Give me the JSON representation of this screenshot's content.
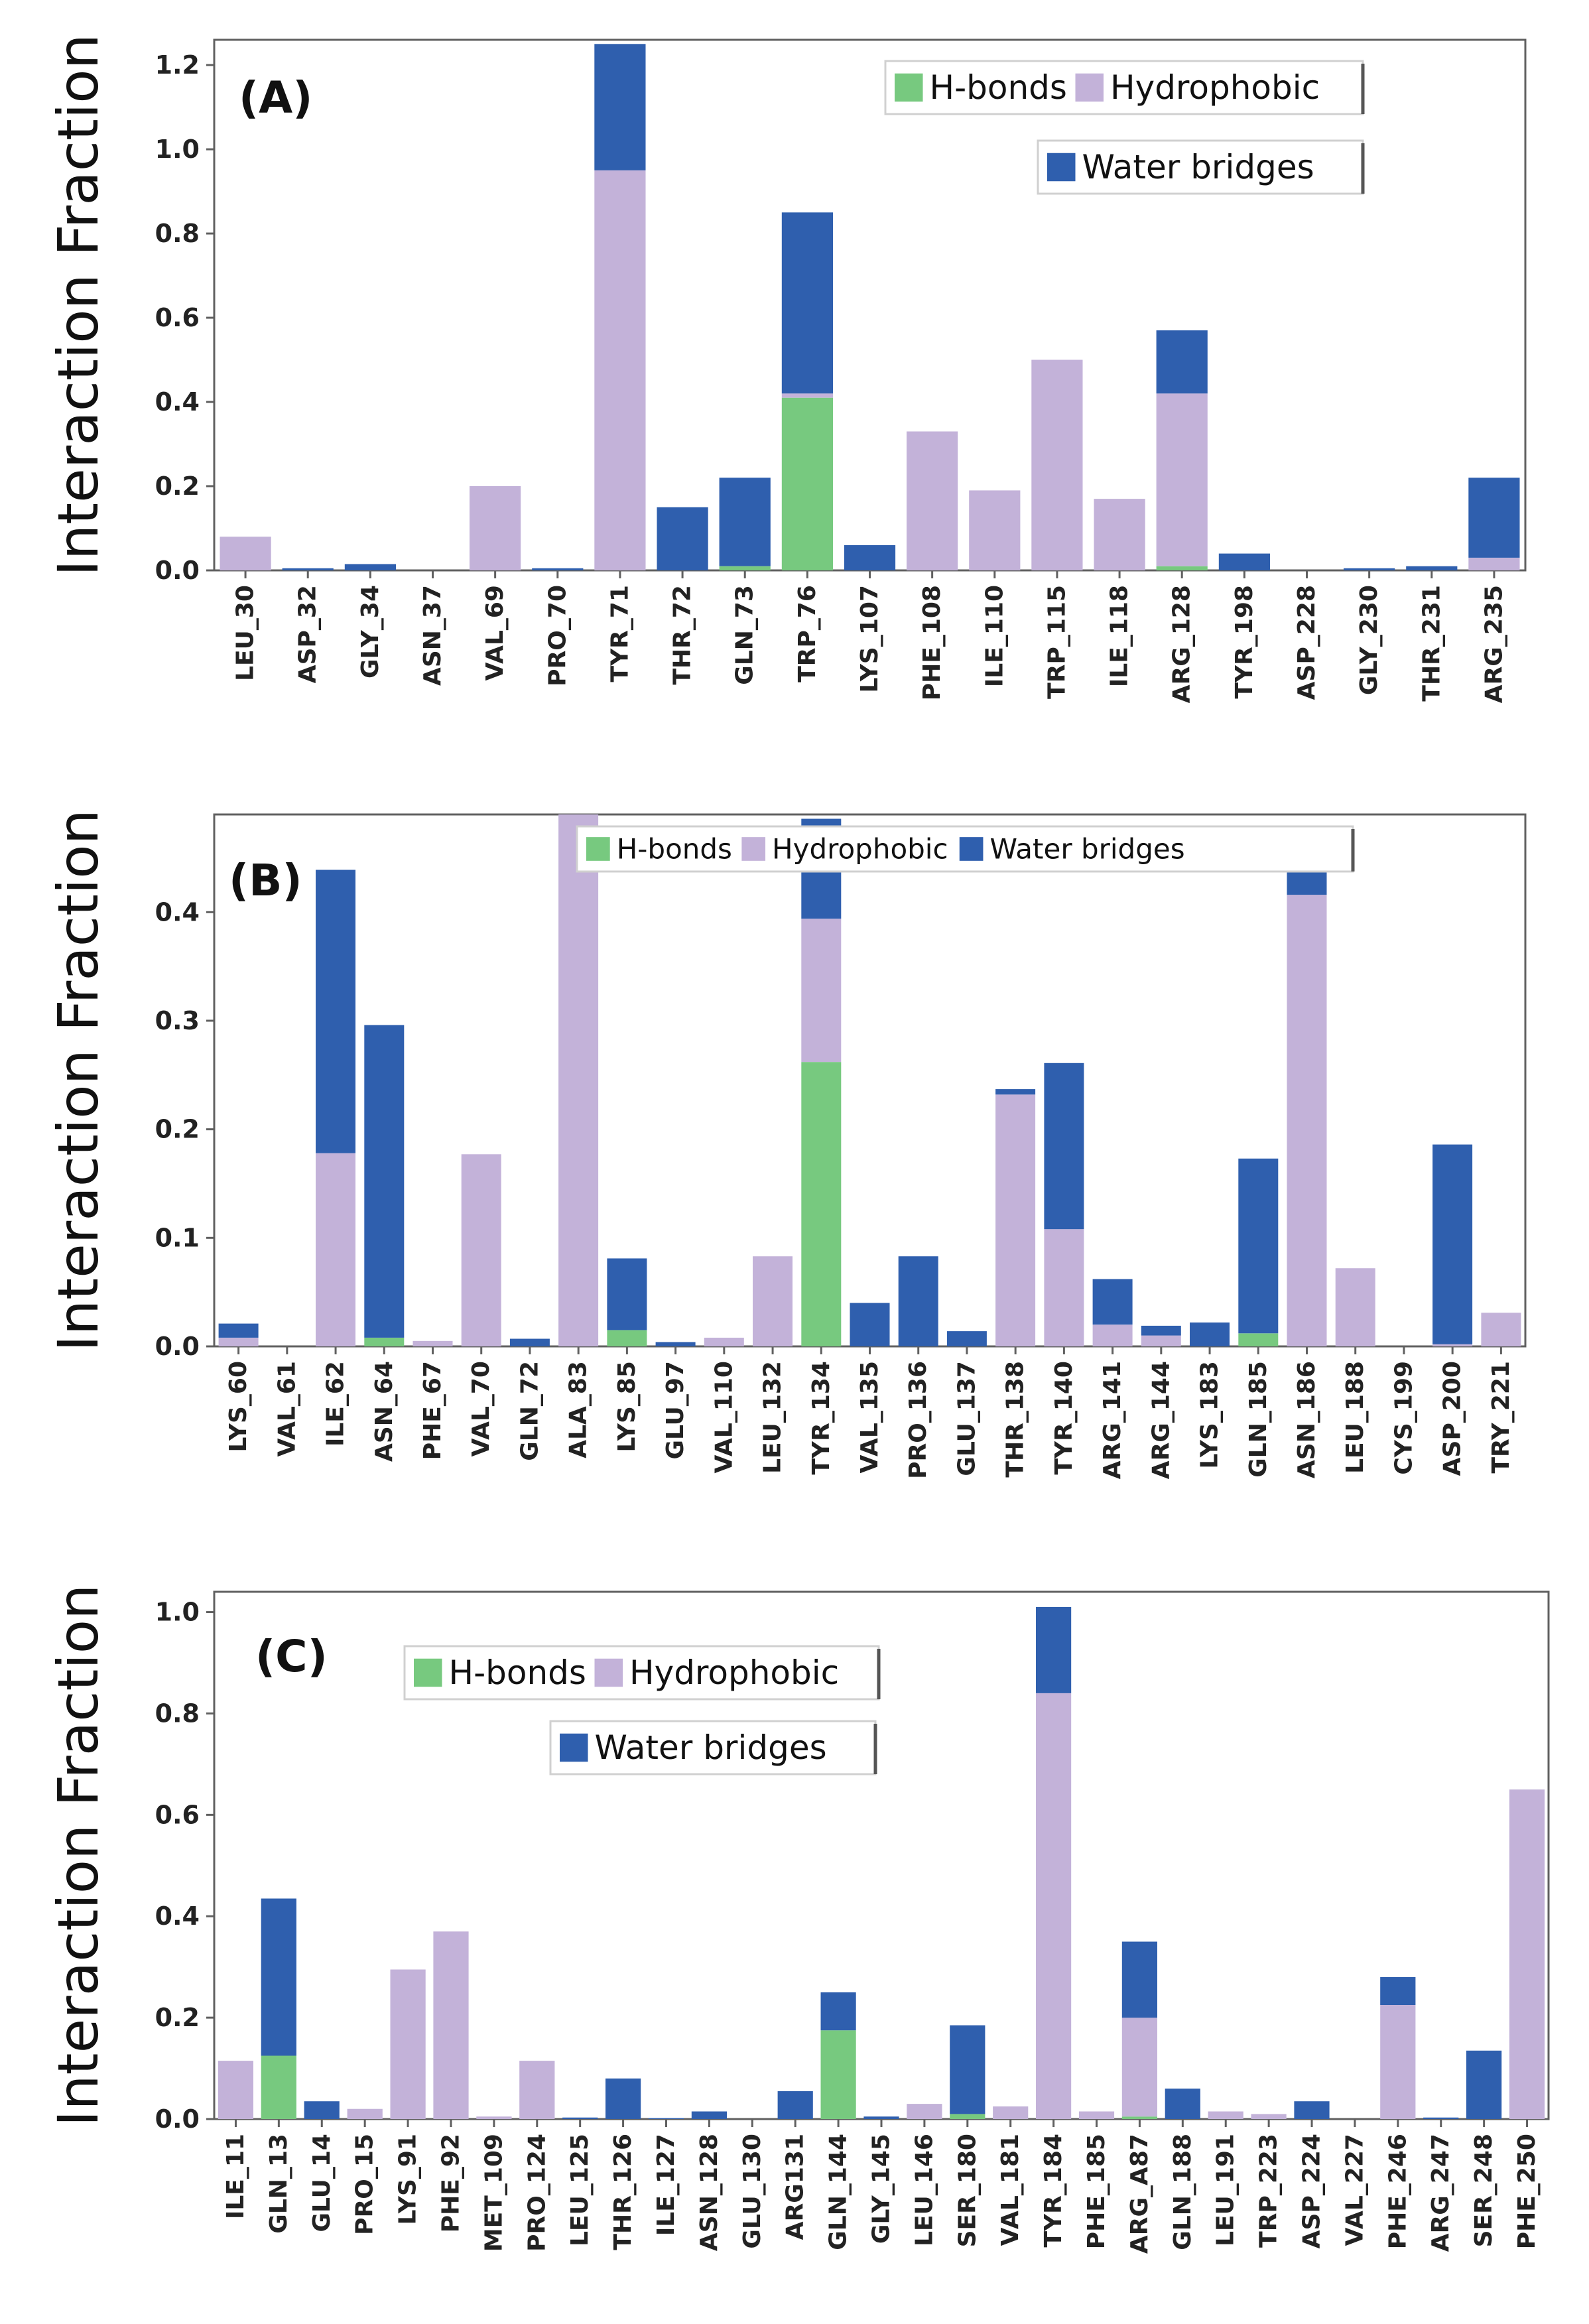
{
  "colors": {
    "hbonds": "#77c97f",
    "hydrophobic": "#c3b2d9",
    "water_bridges": "#2f5fae",
    "axis": "#606060"
  },
  "chart_data": [
    {
      "type": "bar",
      "stacked": true,
      "panel_label": "(A)",
      "title": "",
      "xlabel": "",
      "ylabel": "Interaction Fraction",
      "ylim": [
        0,
        1.26
      ],
      "yticks": [
        0.0,
        0.2,
        0.4,
        0.6,
        0.8,
        1.0,
        1.2
      ],
      "tick_decimals": 1,
      "legend": {
        "rows": [
          [
            "H-bonds",
            "Hydrophobic"
          ],
          [
            "Water bridges"
          ]
        ],
        "placement": "top-right"
      },
      "categories": [
        "LEU_30",
        "ASP_32",
        "GLY_34",
        "ASN_37",
        "VAL_69",
        "PRO_70",
        "TYR_71",
        "THR_72",
        "GLN_73",
        "TRP_76",
        "LYS_107",
        "PHE_108",
        "ILE_110",
        "TRP_115",
        "ILE_118",
        "ARG_128",
        "TYR_198",
        "ASP_228",
        "GLY_230",
        "THR_231",
        "ARG_235"
      ],
      "series": [
        {
          "name": "H-bonds",
          "values": [
            0,
            0,
            0,
            0,
            0,
            0,
            0,
            0,
            0.01,
            0.41,
            0,
            0,
            0,
            0,
            0,
            0.01,
            0,
            0,
            0,
            0,
            0
          ]
        },
        {
          "name": "Hydrophobic",
          "values": [
            0.08,
            0,
            0,
            0,
            0.2,
            0,
            0.95,
            0,
            0,
            0.01,
            0,
            0.33,
            0.19,
            0.5,
            0.17,
            0.41,
            0,
            0,
            0,
            0,
            0.03
          ]
        },
        {
          "name": "Water bridges",
          "values": [
            0,
            0.005,
            0.015,
            0,
            0,
            0.005,
            0.3,
            0.15,
            0.21,
            0.43,
            0.06,
            0,
            0,
            0,
            0,
            0.15,
            0.04,
            0,
            0.005,
            0.01,
            0.19
          ]
        }
      ]
    },
    {
      "type": "bar",
      "stacked": true,
      "panel_label": "(B)",
      "title": "",
      "xlabel": "",
      "ylabel": "Interaction Fraction",
      "ylim": [
        0,
        0.49
      ],
      "yticks": [
        0.0,
        0.1,
        0.2,
        0.3,
        0.4
      ],
      "tick_decimals": 1,
      "legend": {
        "rows": [
          [
            "H-bonds",
            "Hydrophobic",
            "Water bridges"
          ]
        ],
        "placement": "top-center"
      },
      "categories": [
        "LYS_60",
        "VAL_61",
        "ILE_62",
        "ASN_64",
        "PHE_67",
        "VAL_70",
        "GLN_72",
        "ALA_83",
        "LYS_85",
        "GLU_97",
        "VAL_110",
        "LEU_132",
        "TYR_134",
        "VAL_135",
        "PRO_136",
        "GLU_137",
        "THR_138",
        "TYR_140",
        "ARG_141",
        "ARG_144",
        "LYS_183",
        "GLN_185",
        "ASN_186",
        "LEU_188",
        "CYS_199",
        "ASP_200",
        "TRY_221"
      ],
      "series": [
        {
          "name": "H-bonds",
          "values": [
            0,
            0,
            0,
            0.008,
            0,
            0,
            0,
            0,
            0.015,
            0,
            0,
            0,
            0.262,
            0,
            0,
            0,
            0,
            0,
            0,
            0,
            0,
            0.012,
            0,
            0,
            0,
            0,
            0
          ]
        },
        {
          "name": "Hydrophobic",
          "values": [
            0.008,
            0,
            0.178,
            0,
            0.005,
            0.177,
            0,
            0.49,
            0,
            0,
            0.008,
            0.083,
            0.132,
            0,
            0,
            0,
            0.232,
            0.108,
            0.02,
            0.01,
            0,
            0,
            0.416,
            0.072,
            0,
            0.002,
            0.031
          ]
        },
        {
          "name": "Water bridges",
          "values": [
            0.013,
            0,
            0.261,
            0.288,
            0,
            0,
            0.007,
            0,
            0.066,
            0.004,
            0,
            0,
            0.092,
            0.04,
            0.083,
            0.014,
            0.005,
            0.153,
            0.042,
            0.009,
            0.022,
            0.161,
            0.06,
            0,
            0,
            0.184,
            0
          ]
        }
      ]
    },
    {
      "type": "bar",
      "stacked": true,
      "panel_label": "(C)",
      "title": "",
      "xlabel": "",
      "ylabel": "Interaction Fraction",
      "ylim": [
        0,
        1.04
      ],
      "yticks": [
        0.0,
        0.2,
        0.4,
        0.6,
        0.8,
        1.0
      ],
      "tick_decimals": 1,
      "legend": {
        "rows": [
          [
            "H-bonds",
            "Hydrophobic"
          ],
          [
            "Water bridges"
          ]
        ],
        "placement": "top-center"
      },
      "categories": [
        "ILE_11",
        "GLN_13",
        "GLU_14",
        "PRO_15",
        "LYS_91",
        "PHE_92",
        "MET_109",
        "PRO_124",
        "LEU_125",
        "THR_126",
        "ILE_127",
        "ASN_128",
        "GLU_130",
        "ARG131",
        "GLN_144",
        "GLY_145",
        "LEU_146",
        "SER_180",
        "VAL_181",
        "TYR_184",
        "PHE_185",
        "ARG_A87",
        "GLN_188",
        "LEU_191",
        "TRP_223",
        "ASP_224",
        "VAL_227",
        "PHE_246",
        "ARG_247",
        "SER_248",
        "PHE_250"
      ],
      "series": [
        {
          "name": "H-bonds",
          "values": [
            0,
            0.125,
            0,
            0,
            0,
            0,
            0,
            0,
            0,
            0,
            0,
            0,
            0,
            0,
            0.175,
            0,
            0,
            0.01,
            0,
            0,
            0,
            0.005,
            0,
            0,
            0,
            0,
            0,
            0,
            0,
            0,
            0
          ]
        },
        {
          "name": "Hydrophobic",
          "values": [
            0.115,
            0,
            0,
            0.02,
            0.295,
            0.37,
            0.005,
            0.115,
            0,
            0,
            0,
            0,
            0,
            0,
            0,
            0,
            0.03,
            0,
            0.025,
            0.84,
            0.015,
            0.195,
            0,
            0.015,
            0.01,
            0,
            0,
            0.225,
            0,
            0,
            0.65
          ]
        },
        {
          "name": "Water bridges",
          "values": [
            0,
            0.31,
            0.035,
            0,
            0,
            0,
            0,
            0,
            0.003,
            0.08,
            0.002,
            0.015,
            0,
            0.055,
            0.075,
            0.005,
            0,
            0.175,
            0,
            0.17,
            0,
            0.15,
            0.06,
            0,
            0,
            0.035,
            0,
            0.055,
            0.003,
            0.135,
            0
          ]
        }
      ]
    }
  ]
}
